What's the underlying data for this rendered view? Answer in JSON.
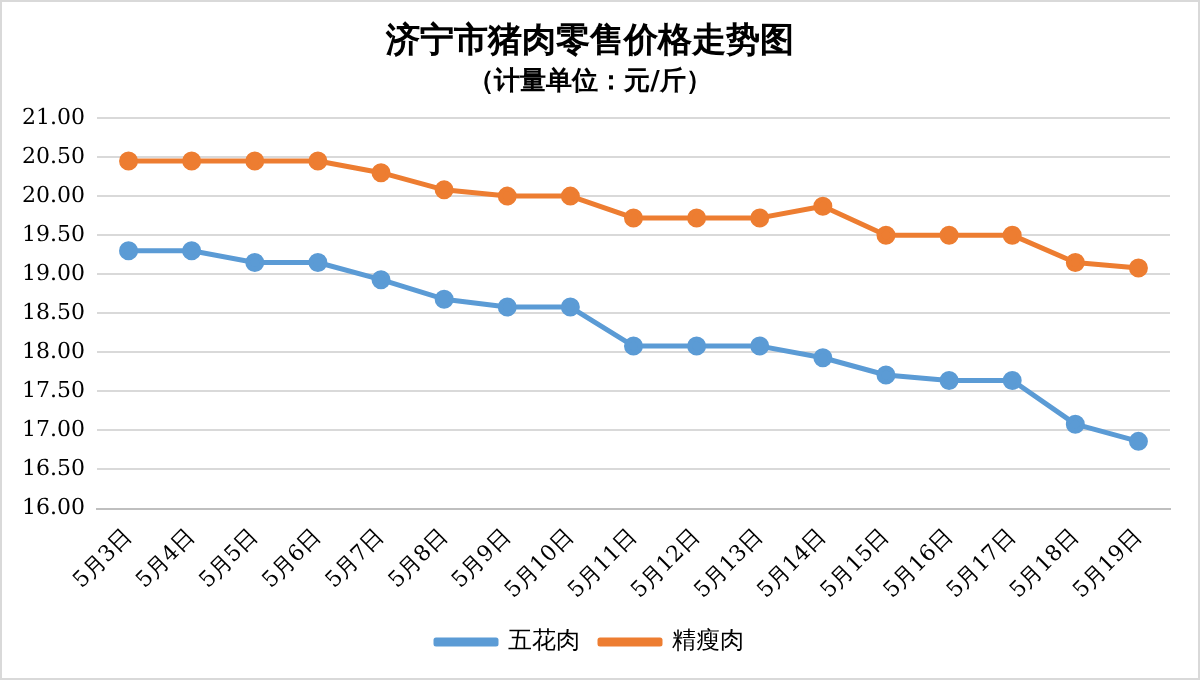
{
  "chart_data": {
    "type": "line",
    "title": "济宁市猪肉零售价格走势图",
    "subtitle": "（计量单位：元/斤）",
    "categories": [
      "5月3日",
      "5月4日",
      "5月5日",
      "5月6日",
      "5月7日",
      "5月8日",
      "5月9日",
      "5月10日",
      "5月11日",
      "5月12日",
      "5月13日",
      "5月14日",
      "5月15日",
      "5月16日",
      "5月17日",
      "5月18日",
      "5月19日"
    ],
    "series": [
      {
        "name": "五花肉",
        "color": "#5b9bd5",
        "values": [
          19.3,
          19.3,
          19.15,
          19.15,
          18.93,
          18.68,
          18.58,
          18.58,
          18.08,
          18.08,
          18.08,
          17.93,
          17.71,
          17.64,
          17.64,
          17.08,
          16.86
        ]
      },
      {
        "name": "精瘦肉",
        "color": "#ed7d31",
        "values": [
          20.45,
          20.45,
          20.45,
          20.45,
          20.3,
          20.08,
          20.0,
          20.0,
          19.72,
          19.72,
          19.72,
          19.87,
          19.5,
          19.5,
          19.5,
          19.15,
          19.08
        ]
      }
    ],
    "ylim": [
      16,
      21
    ],
    "yticks": [
      {
        "value": 16,
        "label": "16.00"
      },
      {
        "value": 16.5,
        "label": "16.50"
      },
      {
        "value": 17,
        "label": "17.00"
      },
      {
        "value": 17.5,
        "label": "17.50"
      },
      {
        "value": 18,
        "label": "18.00"
      },
      {
        "value": 18.5,
        "label": "18.50"
      },
      {
        "value": 19,
        "label": "19.00"
      },
      {
        "value": 19.5,
        "label": "19.50"
      },
      {
        "value": 20,
        "label": "20.00"
      },
      {
        "value": 20.5,
        "label": "20.50"
      },
      {
        "value": 21,
        "label": "21.00"
      }
    ],
    "grid": "y",
    "legend": "bottom",
    "marker": "circle",
    "line_style": "solid"
  }
}
